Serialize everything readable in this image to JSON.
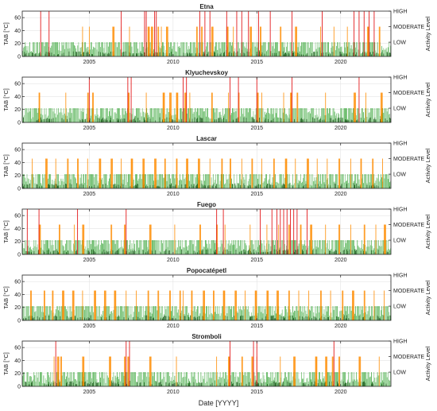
{
  "figure": {
    "xlabel": "Date [YYYY]",
    "ylabel_left": "TAB [°C]",
    "ylabel_right": "Activity Level",
    "level_labels": [
      "HIGH",
      "MODERATE",
      "LOW"
    ]
  },
  "colors": {
    "low": "#2ca02c",
    "moderate": "#ff8c00",
    "high": "#e31a1c",
    "baseline": "#1a5e1a",
    "axis": "#222222",
    "grid": "#e3e3e3"
  },
  "chart_data": [
    {
      "type": "bar",
      "title": "Etna",
      "xlim": [
        2001.0,
        2023.0
      ],
      "ylim": [
        0,
        70
      ],
      "yticks": [
        0,
        20,
        40,
        60
      ],
      "xticks": [
        2005,
        2010,
        2015,
        2020
      ],
      "level_values": {
        "LOW": 22,
        "MODERATE": 46,
        "HIGH": 70
      },
      "low_level_years": [
        [
          2001.0,
          2023.0
        ]
      ],
      "moderate_years": [
        2004.6,
        2005.0,
        2006.4,
        2006.9,
        2007.4,
        2008.3,
        2008.5,
        2008.7,
        2008.9,
        2009.1,
        2009.3,
        2009.6,
        2011.4,
        2011.7,
        2012.3,
        2013.2,
        2013.6,
        2014.6,
        2015.2,
        2016.4,
        2017.3,
        2018.8,
        2019.6,
        2020.4,
        2021.6,
        2022.3
      ],
      "high_years": [
        2002.1,
        2002.6,
        2006.9,
        2008.3,
        2008.4,
        2008.9,
        2009.0,
        2011.6,
        2011.9,
        2012.2,
        2013.2,
        2013.8,
        2014.1,
        2014.5,
        2015.1,
        2015.8,
        2017.1,
        2018.9,
        2020.8,
        2021.1,
        2021.4,
        2021.7,
        2022.0
      ]
    },
    {
      "type": "bar",
      "title": "Klyuchevskoy",
      "xlim": [
        2001.0,
        2023.0
      ],
      "ylim": [
        0,
        70
      ],
      "yticks": [
        0,
        20,
        40,
        60
      ],
      "xticks": [
        2005,
        2010,
        2015,
        2020
      ],
      "level_values": {
        "LOW": 22,
        "MODERATE": 46,
        "HIGH": 70
      },
      "low_level_years": [
        [
          2001.0,
          2023.0
        ]
      ],
      "moderate_years": [
        2002.0,
        2003.6,
        2004.9,
        2005.2,
        2007.3,
        2008.4,
        2009.4,
        2009.8,
        2010.2,
        2010.7,
        2011.0,
        2012.3,
        2013.3,
        2013.9,
        2015.0,
        2015.3,
        2016.6,
        2017.0,
        2017.4,
        2019.1,
        2020.8,
        2021.5,
        2022.4
      ],
      "high_years": [
        2005.0,
        2007.3,
        2007.5,
        2010.6,
        2010.8,
        2013.4,
        2013.9,
        2015.0,
        2017.1,
        2021.1
      ]
    },
    {
      "type": "bar",
      "title": "Lascar",
      "xlim": [
        2001.0,
        2023.0
      ],
      "ylim": [
        0,
        70
      ],
      "yticks": [
        0,
        20,
        40,
        60
      ],
      "xticks": [
        2005,
        2010,
        2015,
        2020
      ],
      "level_values": {
        "LOW": 22,
        "MODERATE": 46,
        "HIGH": 70
      },
      "low_level_years": [
        [
          2001.0,
          2023.0
        ]
      ],
      "moderate_years": [
        2001.6,
        2002.4,
        2003.0,
        2003.7,
        2004.3,
        2004.9,
        2005.6,
        2006.3,
        2006.9,
        2007.5,
        2008.2,
        2008.9,
        2009.5,
        2010.2,
        2010.8,
        2011.5,
        2012.2,
        2012.9,
        2013.4,
        2014.1,
        2014.7,
        2015.3,
        2016.0,
        2016.7,
        2017.3,
        2018.0,
        2018.6,
        2019.2,
        2019.9,
        2020.6,
        2021.2,
        2021.9,
        2022.5
      ],
      "high_years": []
    },
    {
      "type": "bar",
      "title": "Fuego",
      "xlim": [
        2001.0,
        2023.0
      ],
      "ylim": [
        0,
        70
      ],
      "yticks": [
        0,
        20,
        40,
        60
      ],
      "xticks": [
        2005,
        2010,
        2015,
        2020
      ],
      "level_values": {
        "LOW": 22,
        "MODERATE": 46,
        "HIGH": 70
      },
      "low_level_years": [
        [
          2001.0,
          2023.0
        ]
      ],
      "moderate_years": [
        2002.0,
        2003.2,
        2004.1,
        2004.6,
        2006.3,
        2007.1,
        2008.6,
        2010.1,
        2011.6,
        2012.6,
        2013.1,
        2014.6,
        2015.6,
        2016.3,
        2016.9,
        2017.6,
        2018.2,
        2019.1,
        2019.9,
        2020.6,
        2021.4,
        2022.1,
        2022.6
      ],
      "high_years": [
        2001.3,
        2002.0,
        2004.3,
        2007.2,
        2012.6,
        2013.0,
        2015.2,
        2015.9,
        2016.2,
        2016.4,
        2016.6,
        2016.8,
        2017.0,
        2017.2,
        2017.4,
        2018.0
      ]
    },
    {
      "type": "bar",
      "title": "Popocatépetl",
      "xlim": [
        2001.0,
        2023.0
      ],
      "ylim": [
        0,
        70
      ],
      "yticks": [
        0,
        20,
        40,
        60
      ],
      "xticks": [
        2005,
        2010,
        2015,
        2020
      ],
      "level_values": {
        "LOW": 22,
        "MODERATE": 46,
        "HIGH": 70
      },
      "low_level_years": [
        [
          2001.0,
          2023.0
        ]
      ],
      "moderate_years": [
        2001.5,
        2002.3,
        2002.8,
        2003.4,
        2004.0,
        2004.6,
        2005.3,
        2005.9,
        2006.5,
        2007.2,
        2007.8,
        2008.5,
        2009.1,
        2009.8,
        2010.4,
        2010.6,
        2011.1,
        2011.8,
        2012.4,
        2013.0,
        2013.7,
        2014.3,
        2014.9,
        2015.6,
        2016.2,
        2016.9,
        2017.5,
        2018.1,
        2018.8,
        2019.4,
        2020.1,
        2020.7,
        2021.4,
        2022.0,
        2022.6
      ],
      "high_years": []
    },
    {
      "type": "bar",
      "title": "Stromboli",
      "xlim": [
        2001.0,
        2023.0
      ],
      "ylim": [
        0,
        70
      ],
      "yticks": [
        0,
        20,
        40,
        60
      ],
      "xticks": [
        2005,
        2010,
        2015,
        2020
      ],
      "level_values": {
        "LOW": 22,
        "MODERATE": 46,
        "HIGH": 70
      },
      "low_level_years": [
        [
          2001.0,
          2023.0
        ]
      ],
      "moderate_years": [
        2002.9,
        2003.1,
        2003.3,
        2004.6,
        2006.2,
        2007.1,
        2007.3,
        2008.6,
        2010.2,
        2012.6,
        2013.3,
        2014.1,
        2014.7,
        2015.0,
        2016.4,
        2017.2,
        2018.5,
        2019.1,
        2019.5,
        2019.9,
        2021.1,
        2022.3
      ],
      "high_years": [
        2003.0,
        2007.2,
        2007.4,
        2013.4,
        2014.8,
        2015.0,
        2019.6
      ]
    }
  ]
}
